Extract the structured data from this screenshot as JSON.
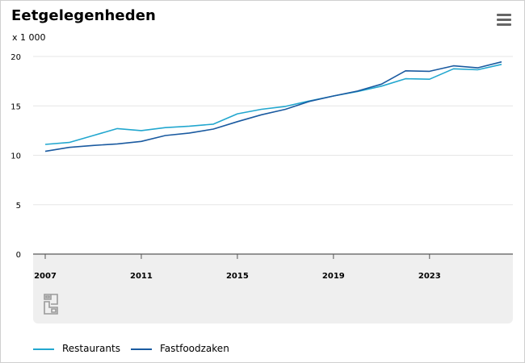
{
  "header": {
    "title": "Eetgelegenheden",
    "unit": "x 1 000",
    "menu_icon": "hamburger-menu-icon"
  },
  "logo": {
    "icon": "cbs-logo-icon"
  },
  "colors": {
    "restaurants": "#22a7cf",
    "fastfood": "#1a5aa0",
    "grid": "#e6e6e6",
    "axis": "#555555",
    "x_band": "#efefef"
  },
  "chart_data": {
    "type": "line",
    "title": "Eetgelegenheden",
    "xlabel": "",
    "ylabel": "x 1 000",
    "x": [
      2007,
      2008,
      2009,
      2010,
      2011,
      2012,
      2013,
      2014,
      2015,
      2016,
      2017,
      2018,
      2019,
      2020,
      2021,
      2022,
      2023,
      2024,
      2025,
      2026
    ],
    "xlim": [
      2007,
      2026
    ],
    "ylim": [
      0,
      20
    ],
    "y_ticks": [
      0,
      5,
      10,
      15,
      20
    ],
    "x_ticks": [
      2007,
      2011,
      2015,
      2019,
      2023
    ],
    "grid": true,
    "legend_position": "bottom",
    "series": [
      {
        "name": "Restaurants",
        "color": "#22a7cf",
        "values": [
          11.1,
          11.3,
          12.0,
          12.7,
          12.5,
          12.8,
          12.95,
          13.15,
          14.2,
          14.65,
          14.95,
          15.5,
          16.0,
          16.45,
          17.0,
          17.75,
          17.7,
          18.75,
          18.65,
          19.2
        ]
      },
      {
        "name": "Fastfoodzaken",
        "color": "#1a5aa0",
        "values": [
          10.4,
          10.8,
          11.0,
          11.15,
          11.4,
          12.0,
          12.25,
          12.65,
          13.4,
          14.1,
          14.65,
          15.45,
          16.0,
          16.5,
          17.2,
          18.55,
          18.5,
          19.05,
          18.85,
          19.45
        ]
      }
    ]
  },
  "legend": {
    "items": [
      {
        "label": "Restaurants",
        "color": "#22a7cf"
      },
      {
        "label": "Fastfoodzaken",
        "color": "#1a5aa0"
      }
    ]
  }
}
